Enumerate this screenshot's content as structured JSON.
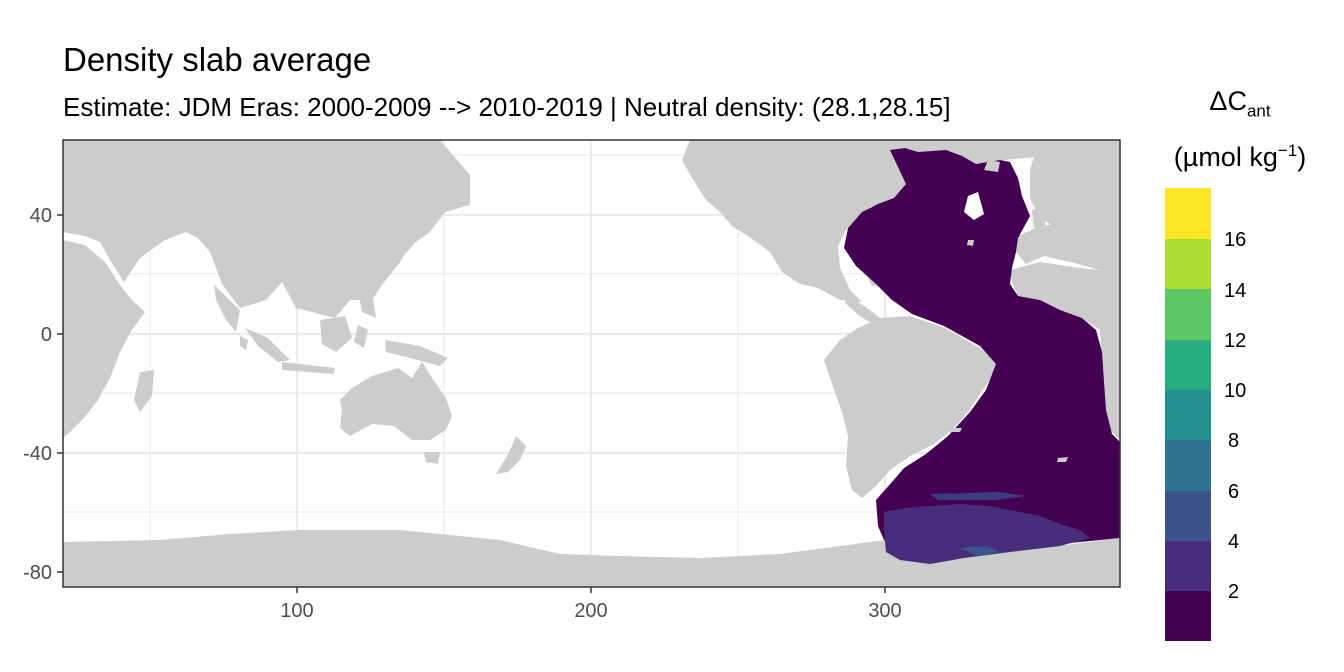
{
  "title": "Density slab average",
  "subtitle": "Estimate: JDM Eras: 2000-2009 --> 2010-2019 | Neutral density: (28.1,28.15]",
  "legend": {
    "symbol": "ΔC",
    "subscript": "ant",
    "unit_base": "(µmol kg",
    "unit_exp": "−1",
    "unit_close": ")",
    "bins": [
      {
        "color": "#440154"
      },
      {
        "color": "#472D7B"
      },
      {
        "color": "#3B528B"
      },
      {
        "color": "#2C728E"
      },
      {
        "color": "#21908C"
      },
      {
        "color": "#27AD81"
      },
      {
        "color": "#5DC863"
      },
      {
        "color": "#AADC32"
      },
      {
        "color": "#FDE725"
      }
    ],
    "break_labels": [
      "2",
      "4",
      "6",
      "8",
      "10",
      "12",
      "14",
      "16"
    ]
  },
  "chart_data": {
    "type": "heatmap",
    "title": "Density slab average",
    "subtitle": "Estimate: JDM Eras: 2000-2009 --> 2010-2019 | Neutral density: (28.1,28.15]",
    "xlabel": "",
    "ylabel": "",
    "xlim": [
      20,
      380
    ],
    "ylim": [
      -85,
      65
    ],
    "x_ticks": [
      100,
      200,
      300
    ],
    "y_ticks": [
      40,
      0,
      -40,
      -80
    ],
    "x_tick_labels": [
      "100",
      "200",
      "300"
    ],
    "y_tick_labels": [
      "40",
      "0",
      "-40",
      "-80"
    ],
    "grid": true,
    "legend_position": "right",
    "colorscale": "viridis (binned)",
    "land_color": "#CCCCCC",
    "value_regions": [
      {
        "region": "Atlantic Ocean (north and south)",
        "lon_range": [
          297,
          380
        ],
        "lat_range": [
          -65,
          65
        ],
        "delta_cant_bin": "0-2"
      },
      {
        "region": "Weddell Sea",
        "lon_range": [
          298,
          360
        ],
        "lat_range": [
          -78,
          -65
        ],
        "delta_cant_bin": "2-4"
      },
      {
        "region": "Weddell Sea, small patches",
        "lon_range": [
          325,
          345
        ],
        "lat_range": [
          -75,
          -70
        ],
        "delta_cant_bin": "4-6"
      }
    ]
  }
}
